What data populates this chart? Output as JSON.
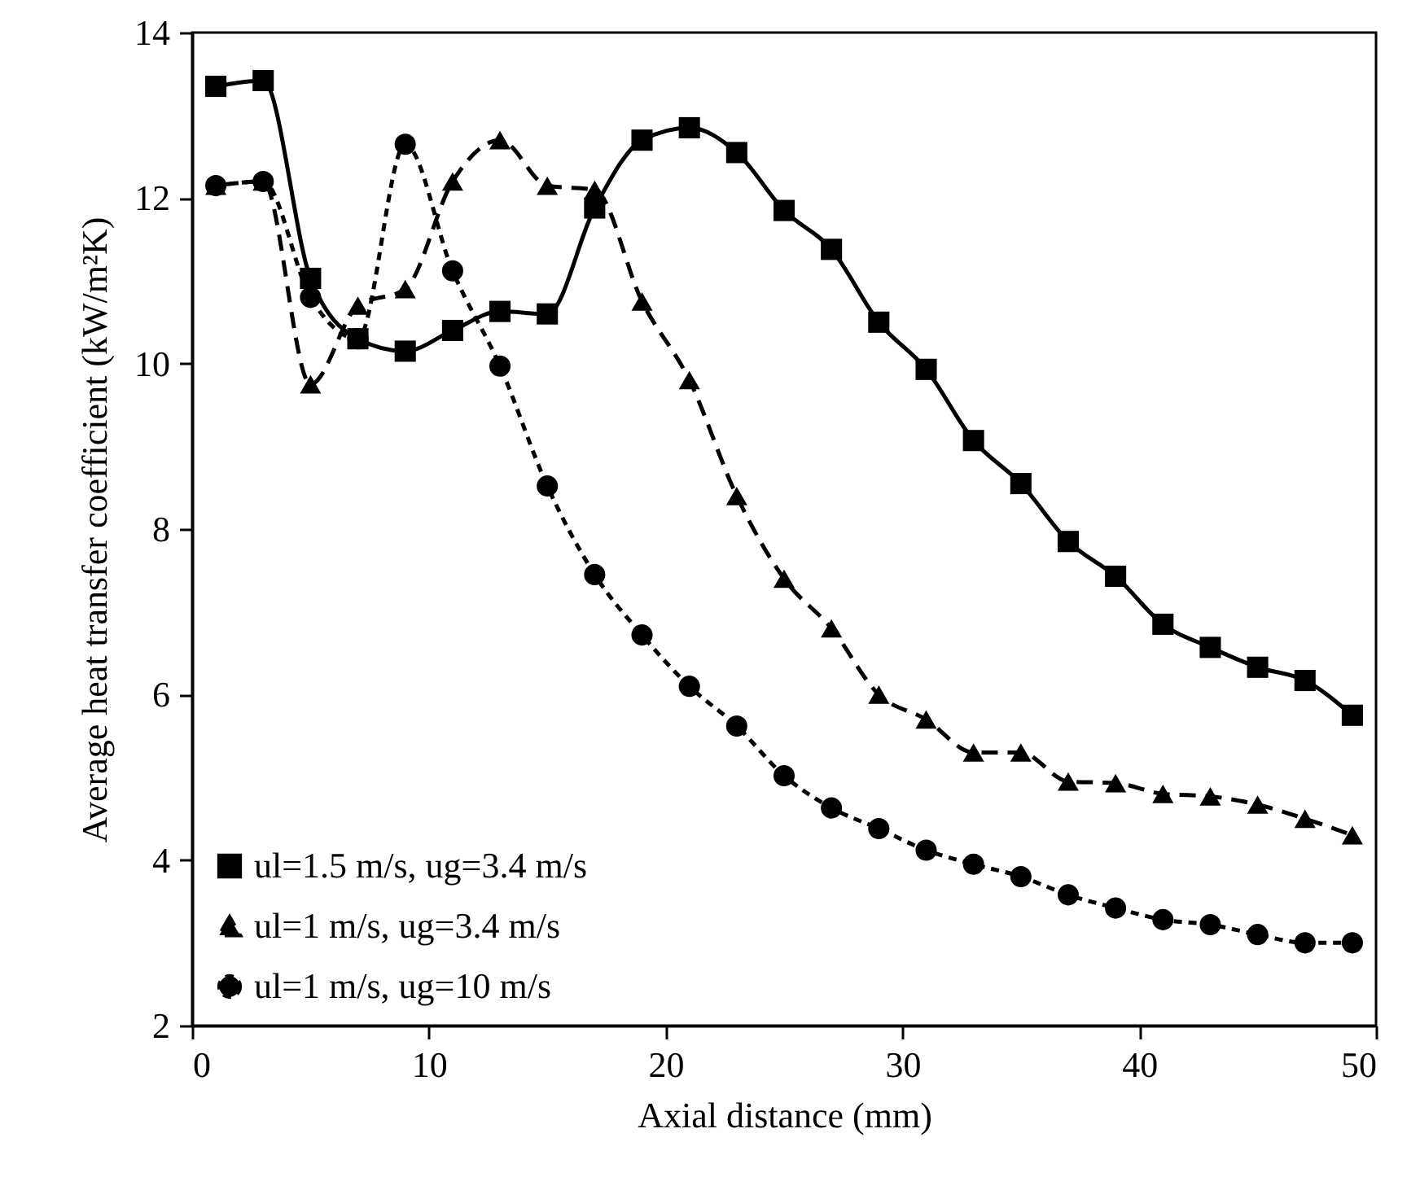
{
  "chart_data": {
    "type": "line",
    "xlabel": "Axial distance (mm)",
    "ylabel": "Average heat transfer coefficient (kW/m²K)",
    "xlim": [
      0,
      50
    ],
    "xticks": [
      0,
      10,
      20,
      30,
      40,
      50
    ],
    "ylim": [
      2,
      14
    ],
    "yticks": [
      2,
      4,
      6,
      8,
      10,
      12,
      14
    ],
    "grid": false,
    "legend": "bottom left",
    "x": [
      1,
      3,
      5,
      7,
      9,
      11,
      13,
      15,
      17,
      19,
      21,
      23,
      25,
      27,
      29,
      31,
      33,
      35,
      37,
      39,
      41,
      43,
      45,
      47,
      49
    ],
    "series": [
      {
        "name": "ul=1.5 m/s, ug=3.4 m/s",
        "color": "#000000",
        "marker": "square",
        "line_style": "solid",
        "values": [
          13.35,
          13.42,
          11.03,
          10.3,
          10.15,
          10.4,
          10.63,
          10.6,
          11.88,
          12.7,
          12.85,
          12.55,
          11.85,
          11.38,
          10.5,
          9.93,
          9.07,
          8.55,
          7.85,
          7.43,
          6.85,
          6.57,
          6.33,
          6.17,
          5.75
        ]
      },
      {
        "name": "ul=1 m/s, ug=3.4 m/s",
        "color": "#000000",
        "marker": "triangle",
        "line_style": "dashed",
        "values": [
          12.15,
          12.2,
          9.75,
          10.7,
          10.9,
          12.2,
          12.7,
          12.15,
          12.1,
          10.75,
          9.8,
          8.4,
          7.4,
          6.8,
          6.0,
          5.7,
          5.3,
          5.3,
          4.95,
          4.93,
          4.8,
          4.77,
          4.67,
          4.5,
          4.3
        ]
      },
      {
        "name": "ul=1 m/s, ug=10 m/s",
        "color": "#000000",
        "marker": "circle",
        "line_style": "dotted",
        "values": [
          12.15,
          12.2,
          10.8,
          10.3,
          12.65,
          11.12,
          9.97,
          8.52,
          7.45,
          6.72,
          6.1,
          5.62,
          5.02,
          4.63,
          4.38,
          4.12,
          3.95,
          3.8,
          3.58,
          3.42,
          3.28,
          3.22,
          3.1,
          3.0,
          3.0
        ]
      }
    ]
  }
}
